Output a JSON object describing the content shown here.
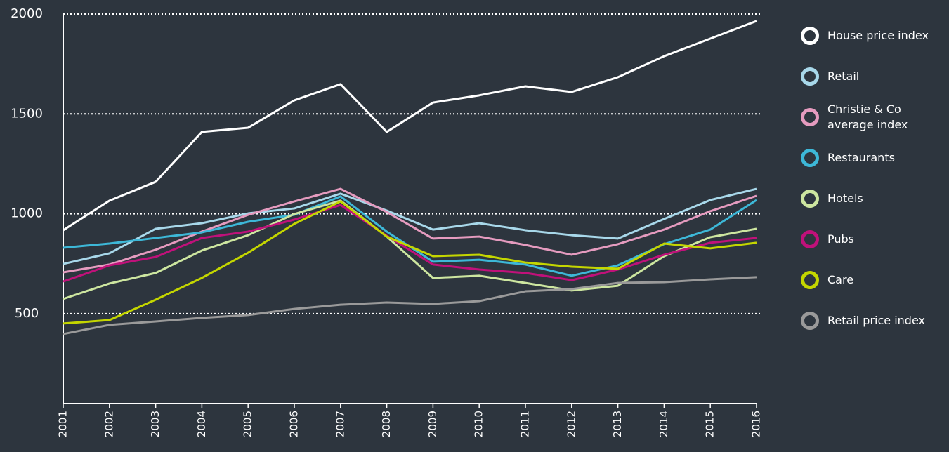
{
  "chart_data": {
    "type": "line",
    "categories": [
      "2001",
      "2002",
      "2003",
      "2004",
      "2005",
      "2006",
      "2007",
      "2008",
      "2009",
      "2010",
      "2011",
      "2012",
      "2013",
      "2014",
      "2015",
      "2016"
    ],
    "ylim": [
      50,
      2000
    ],
    "yticks": [
      500,
      1000,
      1500,
      2000
    ],
    "grid": true,
    "series": [
      {
        "name": "House price index",
        "color": "#ffffff",
        "values": [
          918,
          1066,
          1160,
          1410,
          1431,
          1568,
          1649,
          1410,
          1557,
          1593,
          1638,
          1610,
          1684,
          1789,
          1877,
          1965
        ]
      },
      {
        "name": "Retail",
        "color": "#a8d8ea",
        "values": [
          749,
          802,
          925,
          953,
          1002,
          1027,
          1101,
          1016,
          921,
          953,
          918,
          893,
          876,
          974,
          1069,
          1125
        ]
      },
      {
        "name": "Christie & Co average index",
        "color": "#e59bbf",
        "values": [
          707,
          746,
          820,
          911,
          995,
          1062,
          1125,
          1009,
          876,
          886,
          844,
          795,
          848,
          921,
          1013,
          1090
        ]
      },
      {
        "name": "Restaurants",
        "color": "#3db8d8",
        "values": [
          830,
          851,
          879,
          907,
          960,
          995,
          1087,
          911,
          760,
          770,
          746,
          690,
          742,
          848,
          921,
          1069
        ]
      },
      {
        "name": "Hotels",
        "color": "#cde6a0",
        "values": [
          574,
          651,
          704,
          816,
          893,
          999,
          1066,
          886,
          679,
          690,
          654,
          616,
          640,
          788,
          883,
          925
        ]
      },
      {
        "name": "Pubs",
        "color": "#c0117a",
        "values": [
          661,
          742,
          784,
          879,
          911,
          971,
          1044,
          890,
          746,
          721,
          704,
          668,
          721,
          795,
          855,
          879
        ]
      },
      {
        "name": "Care",
        "color": "#c4d600",
        "values": [
          451,
          468,
          570,
          679,
          805,
          950,
          1062,
          886,
          788,
          795,
          756,
          735,
          725,
          851,
          827,
          855
        ]
      },
      {
        "name": "Retail price index",
        "color": "#9a9a9a",
        "values": [
          398,
          444,
          461,
          479,
          493,
          524,
          545,
          556,
          549,
          563,
          612,
          623,
          654,
          658,
          672,
          683
        ]
      }
    ]
  }
}
